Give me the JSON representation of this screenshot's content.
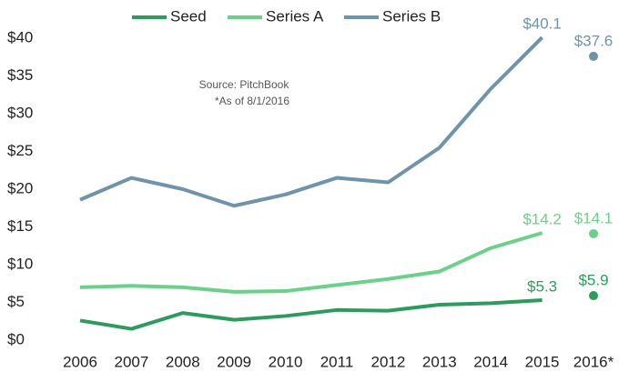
{
  "chart_data": {
    "type": "line",
    "categories": [
      "2006",
      "2007",
      "2008",
      "2009",
      "2010",
      "2011",
      "2012",
      "2013",
      "2014",
      "2015",
      "2016*"
    ],
    "series": [
      {
        "name": "Seed",
        "color": "#2e9a5e",
        "values": [
          2.6,
          1.5,
          3.6,
          2.7,
          3.2,
          4.0,
          3.9,
          4.7,
          4.9,
          5.3,
          5.9
        ],
        "value_labels": [
          null,
          null,
          null,
          null,
          null,
          null,
          null,
          null,
          null,
          "$5.3",
          "$5.9"
        ]
      },
      {
        "name": "Series A",
        "color": "#6ccf8a",
        "values": [
          7.0,
          7.2,
          7.0,
          6.4,
          6.5,
          7.3,
          8.1,
          9.1,
          12.2,
          14.2,
          14.1
        ],
        "value_labels": [
          null,
          null,
          null,
          null,
          null,
          null,
          null,
          null,
          null,
          "$14.2",
          "$14.1"
        ]
      },
      {
        "name": "Series B",
        "color": "#6f93a8",
        "values": [
          18.6,
          21.5,
          20.0,
          17.8,
          19.3,
          21.5,
          20.9,
          25.5,
          33.3,
          40.1,
          37.6
        ],
        "value_labels": [
          null,
          null,
          null,
          null,
          null,
          null,
          null,
          null,
          null,
          "$40.1",
          "$37.6"
        ]
      }
    ],
    "last_point_separate": true,
    "annotations": [
      "Source: PitchBook",
      "*As of 8/1/2016"
    ],
    "ylim": [
      0,
      40
    ],
    "yticks": [
      {
        "value": 0,
        "label": "$0"
      },
      {
        "value": 5,
        "label": "$5"
      },
      {
        "value": 10,
        "label": "$10"
      },
      {
        "value": 15,
        "label": "$15"
      },
      {
        "value": 20,
        "label": "$20"
      },
      {
        "value": 25,
        "label": "$25"
      },
      {
        "value": 30,
        "label": "$30"
      },
      {
        "value": 35,
        "label": "$35"
      },
      {
        "value": 40,
        "label": "$40"
      }
    ],
    "legend": "top",
    "grid": false
  }
}
